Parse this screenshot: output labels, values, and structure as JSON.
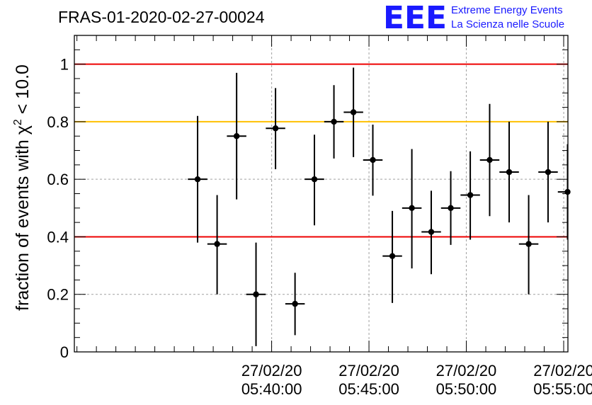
{
  "header": {
    "run_label": "FRAS-01-2020-02-27-00024"
  },
  "logo": {
    "mark": "EEE",
    "line1": "Extreme Energy Events",
    "line2": "La Scienza nelle Scuole",
    "color": "#1a1aff"
  },
  "chart_data": {
    "type": "scatter",
    "ylabel_prefix": "fraction of events with ",
    "ylabel_chi": "χ",
    "ylabel_sup": "2",
    "ylabel_suffix": " < 10.0",
    "xlabel": "",
    "xlim_minutes": [
      5.4978,
      5.9203
    ],
    "ylim": [
      0,
      1.1
    ],
    "yticks": [
      {
        "v": 0,
        "label": "0"
      },
      {
        "v": 0.2,
        "label": "0.2"
      },
      {
        "v": 0.4,
        "label": "0.4"
      },
      {
        "v": 0.6,
        "label": "0.6"
      },
      {
        "v": 0.8,
        "label": "0.8"
      },
      {
        "v": 1,
        "label": "1"
      }
    ],
    "xticks": [
      {
        "t": 5.6667,
        "date": "27/02/20",
        "time": "05:40:00"
      },
      {
        "t": 5.75,
        "date": "27/02/20",
        "time": "05:45:00"
      },
      {
        "t": 5.8333,
        "date": "27/02/20",
        "time": "05:50:00"
      },
      {
        "t": 5.9167,
        "date": "27/02/20",
        "time": "05:55:00"
      }
    ],
    "grid": true,
    "reference_lines": [
      {
        "y": 1.0,
        "color": "#ee0000"
      },
      {
        "y": 0.8,
        "color": "#ffc000"
      },
      {
        "y": 0.4,
        "color": "#ee0000"
      }
    ],
    "points": [
      {
        "t": 5.6033,
        "y": 0.6,
        "ylo": 0.38,
        "yhi": 0.82
      },
      {
        "t": 5.62,
        "y": 0.375,
        "ylo": 0.2,
        "yhi": 0.545
      },
      {
        "t": 5.6367,
        "y": 0.75,
        "ylo": 0.53,
        "yhi": 0.97
      },
      {
        "t": 5.6533,
        "y": 0.2,
        "ylo": 0.02,
        "yhi": 0.38
      },
      {
        "t": 5.67,
        "y": 0.777,
        "ylo": 0.635,
        "yhi": 0.917
      },
      {
        "t": 5.6867,
        "y": 0.167,
        "ylo": 0.058,
        "yhi": 0.275
      },
      {
        "t": 5.7033,
        "y": 0.6,
        "ylo": 0.44,
        "yhi": 0.755
      },
      {
        "t": 5.72,
        "y": 0.8,
        "ylo": 0.672,
        "yhi": 0.927
      },
      {
        "t": 5.7367,
        "y": 0.833,
        "ylo": 0.677,
        "yhi": 0.988
      },
      {
        "t": 5.7533,
        "y": 0.667,
        "ylo": 0.543,
        "yhi": 0.79
      },
      {
        "t": 5.77,
        "y": 0.333,
        "ylo": 0.17,
        "yhi": 0.49
      },
      {
        "t": 5.7867,
        "y": 0.5,
        "ylo": 0.29,
        "yhi": 0.705
      },
      {
        "t": 5.8033,
        "y": 0.417,
        "ylo": 0.27,
        "yhi": 0.56
      },
      {
        "t": 5.82,
        "y": 0.5,
        "ylo": 0.372,
        "yhi": 0.628
      },
      {
        "t": 5.8367,
        "y": 0.545,
        "ylo": 0.39,
        "yhi": 0.697
      },
      {
        "t": 5.8533,
        "y": 0.667,
        "ylo": 0.472,
        "yhi": 0.862
      },
      {
        "t": 5.87,
        "y": 0.625,
        "ylo": 0.45,
        "yhi": 0.8
      },
      {
        "t": 5.8867,
        "y": 0.375,
        "ylo": 0.2,
        "yhi": 0.545
      },
      {
        "t": 5.9033,
        "y": 0.625,
        "ylo": 0.45,
        "yhi": 0.8
      },
      {
        "t": 5.92,
        "y": 0.556,
        "ylo": 0.39,
        "yhi": 0.722
      }
    ]
  }
}
